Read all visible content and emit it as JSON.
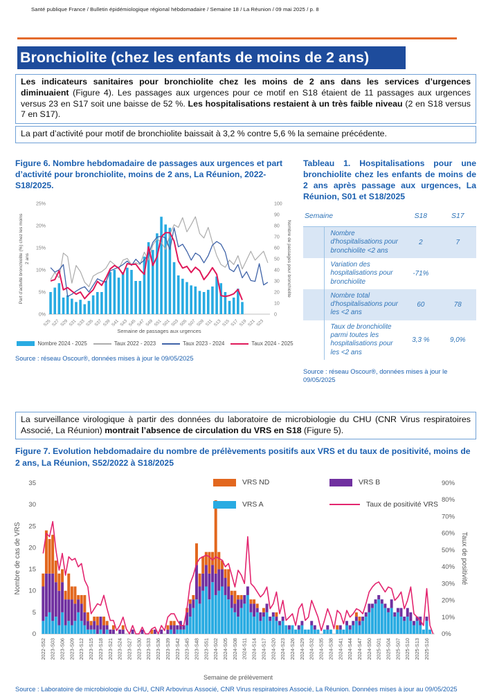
{
  "header": {
    "text": "Santé publique France / Bulletin épidémiologique régional hébdomadaire / Semaine 18 / La Réunion / 09 mai 2025 / p. 8"
  },
  "section": {
    "title": "Bronchiolite (chez les enfants de moins de 2 ans)",
    "bar_color": "#1E4C9C",
    "rule_color": "#E46B2C"
  },
  "summary_box": {
    "paragraph1": [
      {
        "text": "Les indicateurs sanitaires pour bronchiolite chez les moins de 2 ans dans les services d’urgences diminuaient",
        "bold": true
      },
      {
        "text": " (Figure 4). Les passages aux urgences pour ce motif en S18 étaient de 11 passages aux urgences versus 23 en S17 soit une baisse de 52 %. ",
        "bold": false
      },
      {
        "text": "Les hospitalisations restaient à un très faible niveau",
        "bold": true
      },
      {
        "text": " (2 en S18 versus 7 en S17).",
        "bold": false
      }
    ],
    "paragraph2": [
      {
        "text": "La part d’activité pour motif de bronchiolite baissait à 3,2 % contre 5,6 % la semaine précédente.",
        "bold": false
      }
    ]
  },
  "figure6": {
    "title": "Figure 6. Nombre hebdomadaire de passages aux urgences et part d’activité pour bronchiolite, moins de 2 ans, La Réunion, 2022-S18/2025.",
    "source": "Source : réseau Oscour®, données mises à jour le 09/05/2025",
    "chart_data": {
      "type": "bar+line",
      "x_axis_label": "Semaine de passages aux urgences",
      "y_left_label_line1": "Part d’activité bronchiolite (%) chez les moins",
      "y_left_label_line2": "2 ans",
      "y_right_label": "Nombre de passages pour bronchiolite",
      "y_left_max": 25,
      "y_left_step": 5,
      "y_left_suffix": "%",
      "y_right_max": 100,
      "y_right_step": 10,
      "n_weeks": 52,
      "x_tick_every": 2,
      "x_tick_labels": [
        "S25",
        "S27",
        "S29",
        "S31",
        "S33",
        "S35",
        "S37",
        "S39",
        "S41",
        "S43",
        "S45",
        "S47",
        "S49",
        "S51",
        "S01",
        "S03",
        "S05",
        "S07",
        "S09",
        "S11",
        "S13",
        "S15",
        "S17",
        "S19",
        "S21",
        "S23"
      ],
      "bars": {
        "name": "Nombre 2024 - 2025",
        "color": "#29ABE2",
        "axis": "right",
        "values": [
          20,
          24,
          28,
          15,
          17,
          14,
          11,
          13,
          9,
          12,
          17,
          20,
          20,
          30,
          38,
          40,
          33,
          38,
          42,
          40,
          30,
          30,
          52,
          65,
          58,
          73,
          88,
          81,
          78,
          47,
          35,
          32,
          29,
          26,
          25,
          21,
          20,
          22,
          25,
          34,
          28,
          20,
          12,
          15,
          23,
          11
        ]
      },
      "lines": [
        {
          "name": "Taux 2022 - 2023",
          "color": "#ACACAC",
          "width": 1.2,
          "values": [
            7.8,
            9.4,
            8.2,
            13.8,
            13.0,
            7.0,
            11.0,
            9.6,
            7.2,
            6.2,
            8.6,
            9.2,
            9.6,
            10.4,
            12.0,
            11.2,
            10.2,
            12.2,
            12.6,
            11.2,
            11.6,
            11.2,
            14.0,
            12.2,
            15.6,
            17.0,
            16.2,
            14.6,
            18.0,
            20.2,
            19.6,
            21.8,
            18.6,
            20.2,
            22.0,
            18.2,
            17.2,
            19.6,
            16.2,
            13.2,
            11.2,
            10.6,
            12.2,
            11.2,
            13.2,
            10.2,
            12.2,
            14.2,
            12.2,
            13.2,
            14.2,
            11.6
          ]
        },
        {
          "name": "Taux 2023 - 2024",
          "color": "#3F63A8",
          "width": 1.3,
          "values": [
            10.5,
            9.5,
            10.0,
            11.2,
            4.0,
            4.5,
            5.2,
            5.8,
            6.2,
            5.0,
            6.5,
            8.0,
            7.5,
            7.2,
            9.8,
            10.2,
            10.6,
            11.2,
            12.0,
            11.0,
            12.4,
            11.4,
            12.2,
            13.6,
            16.2,
            17.4,
            17.6,
            17.2,
            14.6,
            19.5,
            15.2,
            15.8,
            14.2,
            12.2,
            13.8,
            13.2,
            11.6,
            13.2,
            15.6,
            16.4,
            15.8,
            14.0,
            10.2,
            9.6,
            11.2,
            8.2,
            9.6,
            7.6,
            7.4,
            11.4,
            6.6,
            7.2
          ]
        },
        {
          "name": "Taux 2024 - 2025",
          "color": "#E0195A",
          "width": 2,
          "values": [
            7.5,
            7.8,
            9.8,
            5.5,
            6.0,
            5.2,
            4.5,
            5.0,
            3.5,
            4.6,
            5.5,
            7.4,
            6.5,
            8.2,
            10.2,
            11.0,
            10.4,
            9.0,
            11.4,
            11.2,
            11.3,
            10.0,
            9.0,
            15.2,
            11.0,
            13.0,
            17.5,
            18.4,
            18.4,
            16.5,
            12.0,
            10.4,
            10.8,
            9.4,
            10.6,
            9.8,
            7.8,
            9.0,
            10.5,
            9.0,
            4.2,
            4.0,
            4.2,
            4.6,
            5.6,
            3.2
          ]
        }
      ]
    }
  },
  "table1": {
    "title": "Tableau 1. Hospitalisations pour une bronchiolite chez les enfants de moins de 2 ans après passage aux urgences, La Réunion, S01 et S18/2025",
    "columns": [
      "Semaine",
      "S18",
      "S17"
    ],
    "rows": [
      {
        "label": "Nombre d'hospitalisations pour bronchiolite <2 ans",
        "s18": "2",
        "s17": "7",
        "shaded": true
      },
      {
        "label": "Variation des hospitalisations pour bronchiolite",
        "s18": "-71%",
        "s17": "",
        "shaded": false
      },
      {
        "label": "Nombre total d'hospitalisations pour les <2 ans",
        "s18": "60",
        "s17": "78",
        "shaded": true
      },
      {
        "label": "Taux de bronchiolite parmi toutes les hospitalisations pour les <2 ans",
        "s18": "3,3 %",
        "s17": "9,0%",
        "shaded": false
      }
    ],
    "source": "Source : réseau Oscour®, données mises à jour le 09/05/2025"
  },
  "virology_box": {
    "paragraph": [
      {
        "text": "La surveillance virologique à partir des données du laboratoire de microbiologie du CHU (CNR Virus respiratoires Associé, La Réunion) ",
        "bold": false
      },
      {
        "text": "montrait l’absence de circulation du VRS en S18",
        "bold": true
      },
      {
        "text": " (Figure 5).",
        "bold": false
      }
    ]
  },
  "figure7": {
    "title": "Figure 7. Evolution hebdomadaire du nombre de prélèvements positifs aux VRS et du taux de positivité, moins de 2 ans, La Réunion, S52/2022 à S18/2025",
    "source": "Source : Laboratoire de microbiologie du CHU, CNR Arbovirus Associé, CNR Virus respiratoires Associé, La Réunion. Données mises à jour au 09/05/2025",
    "chart_data": {
      "type": "stacked-bar+line",
      "x_axis_label": "Semaine de prélèvement",
      "y_left_label": "Nombre de cas de VRS",
      "y_right_label": "Taux de positivité",
      "y_left_max": 35,
      "y_left_step": 5,
      "y_right_max": 90,
      "y_right_step": 10,
      "y_right_suffix": "%",
      "n_weeks": 123,
      "x_tick_every": 3,
      "x_tick_labels": [
        "2022-S52",
        "2023-S03",
        "2023-S06",
        "2023-S09",
        "2023-S12",
        "2023-S15",
        "2023-S18",
        "2023-S21",
        "2023-S24",
        "2023-S27",
        "2023-S30",
        "2023-S33",
        "2023-S36",
        "2023-S39",
        "2023-S42",
        "2023-S45",
        "2023-S48",
        "2023-S51",
        "2024-S02",
        "2024-S05",
        "2024-S08",
        "2024-S11",
        "2024-S14",
        "2024-S17",
        "2024-S20",
        "2024-S23",
        "2024-S26",
        "2024-S29",
        "2024-S32",
        "2024-S35",
        "2024-S38",
        "2024-S41",
        "2024-S44",
        "2024-S47",
        "2024-S50",
        "2025-S01",
        "2025-S04",
        "2025-S07",
        "2025-S10",
        "2025-S13",
        "2025-S16"
      ],
      "series": [
        {
          "name": "VRS A",
          "color": "#29ABE2",
          "values": [
            3,
            4,
            5,
            3,
            4,
            2,
            5,
            2,
            3,
            2,
            3,
            5,
            3,
            2,
            1,
            1,
            1,
            0,
            1,
            0,
            1,
            0,
            0,
            0,
            0,
            0,
            0,
            0,
            0,
            0,
            0,
            0,
            0,
            0,
            0,
            0,
            0,
            0,
            0,
            0,
            1,
            0,
            1,
            1,
            1,
            2,
            4,
            6,
            8,
            7,
            10,
            11,
            8,
            12,
            9,
            10,
            11,
            9,
            8,
            6,
            5,
            4,
            6,
            7,
            9,
            5,
            4,
            5,
            3,
            4,
            5,
            3,
            4,
            3,
            2,
            3,
            2,
            1,
            2,
            1,
            1,
            2,
            1,
            1,
            2,
            1,
            1,
            0,
            1,
            1,
            1,
            0,
            1,
            1,
            1,
            2,
            1,
            2,
            3,
            2,
            3,
            4,
            5,
            6,
            7,
            8,
            7,
            6,
            5,
            6,
            4,
            5,
            4,
            3,
            4,
            3,
            2,
            3,
            2,
            1,
            3,
            1,
            0
          ]
        },
        {
          "name": "VRS B",
          "color": "#7030A0",
          "values": [
            8,
            10,
            9,
            11,
            8,
            8,
            7,
            6,
            5,
            6,
            4,
            3,
            4,
            3,
            2,
            1,
            2,
            2,
            3,
            2,
            1,
            1,
            1,
            0,
            1,
            1,
            0,
            0,
            1,
            0,
            0,
            1,
            0,
            0,
            0,
            1,
            0,
            1,
            0,
            1,
            1,
            2,
            1,
            2,
            1,
            3,
            3,
            2,
            8,
            4,
            4,
            5,
            6,
            4,
            5,
            5,
            4,
            4,
            3,
            3,
            2,
            4,
            2,
            2,
            2,
            2,
            3,
            1,
            2,
            1,
            2,
            1,
            1,
            1,
            1,
            1,
            0,
            1,
            0,
            0,
            1,
            1,
            0,
            0,
            1,
            1,
            0,
            0,
            0,
            1,
            0,
            0,
            0,
            1,
            0,
            1,
            1,
            1,
            1,
            1,
            1,
            1,
            2,
            1,
            1,
            1,
            1,
            1,
            1,
            2,
            1,
            1,
            2,
            1,
            2,
            2,
            1,
            1,
            2,
            0,
            1,
            0,
            0
          ]
        },
        {
          "name": "VRS ND",
          "color": "#E2671E",
          "values": [
            3,
            10,
            8,
            9,
            5,
            4,
            3,
            2,
            6,
            3,
            4,
            1,
            2,
            4,
            2,
            1,
            1,
            2,
            0,
            2,
            1,
            0,
            1,
            0,
            0,
            1,
            0,
            0,
            0,
            0,
            0,
            0,
            0,
            0,
            1,
            0,
            0,
            0,
            0,
            1,
            1,
            1,
            0,
            0,
            0,
            1,
            1,
            1,
            5,
            3,
            4,
            3,
            5,
            3,
            17,
            4,
            2,
            2,
            4,
            1,
            3,
            1,
            1,
            0,
            0,
            1,
            1,
            1,
            0,
            1,
            0,
            0,
            0,
            1,
            0,
            0,
            0,
            0,
            0,
            0,
            0,
            0,
            0,
            0,
            0,
            0,
            0,
            0,
            0,
            0,
            0,
            0,
            1,
            0,
            0,
            0,
            0,
            0,
            1,
            1,
            0,
            0,
            0,
            0,
            0,
            0,
            0,
            0,
            0,
            0,
            0,
            0,
            0,
            0,
            0,
            0,
            0,
            0,
            0,
            0,
            0,
            0,
            0
          ]
        }
      ],
      "line": {
        "name": "Taux de positivité VRS",
        "color": "#E3256F",
        "values": [
          48,
          60,
          58,
          67,
          50,
          38,
          48,
          35,
          46,
          44,
          45,
          40,
          42,
          32,
          28,
          12,
          15,
          18,
          17,
          23,
          15,
          8,
          8,
          2,
          5,
          10,
          3,
          0,
          5,
          0,
          0,
          4,
          0,
          0,
          3,
          4,
          0,
          5,
          2,
          10,
          12,
          12,
          8,
          5,
          5,
          15,
          30,
          35,
          42,
          45,
          46,
          47,
          46,
          44,
          46,
          45,
          44,
          40,
          42,
          35,
          28,
          38,
          35,
          30,
          58,
          30,
          28,
          25,
          22,
          24,
          28,
          15,
          18,
          25,
          12,
          20,
          8,
          10,
          12,
          5,
          15,
          18,
          8,
          10,
          20,
          15,
          10,
          2,
          8,
          15,
          10,
          3,
          14,
          12,
          6,
          14,
          10,
          12,
          15,
          14,
          12,
          18,
          25,
          28,
          30,
          31,
          28,
          25,
          28,
          27,
          20,
          22,
          25,
          15,
          20,
          28,
          12,
          10,
          8,
          5,
          27,
          5,
          0
        ]
      }
    }
  }
}
